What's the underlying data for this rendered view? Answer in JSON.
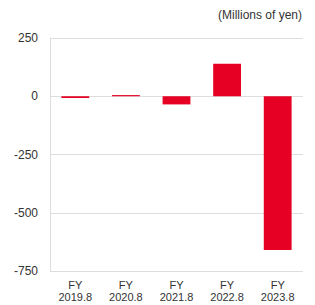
{
  "chart_data": {
    "type": "bar",
    "ylabel": "(Millions of yen)",
    "categories": [
      "FY\n2019.8",
      "FY\n2020.8",
      "FY\n2021.8",
      "FY\n2022.8",
      "FY\n2023.8"
    ],
    "values": [
      -8,
      5,
      -35,
      140,
      -660
    ],
    "color": "#e60023",
    "ylim": [
      -750,
      250
    ],
    "yticks": [
      -750,
      -500,
      -250,
      0,
      250
    ],
    "grid": true
  }
}
